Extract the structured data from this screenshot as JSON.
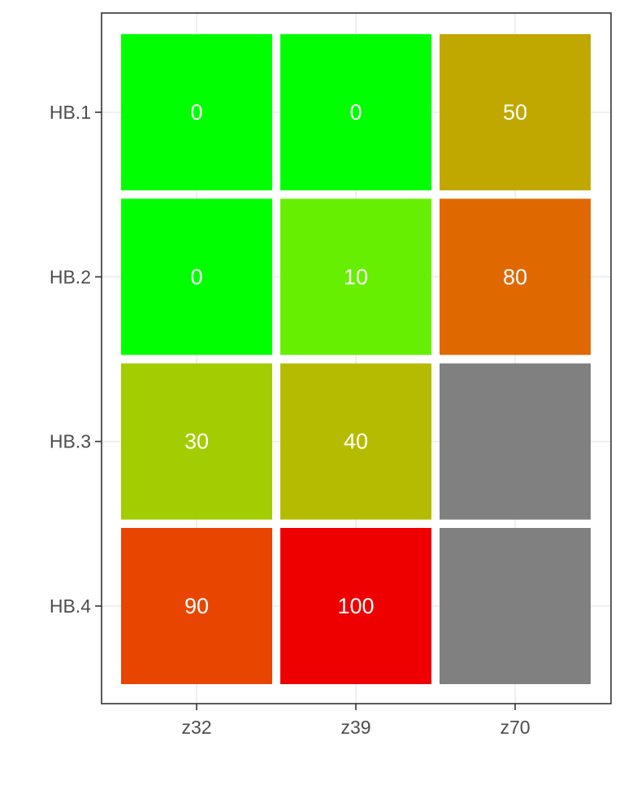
{
  "chart_data": {
    "type": "heatmap",
    "title": "",
    "xlabel": "",
    "ylabel": "",
    "x_categories": [
      "z32",
      "z39",
      "z70"
    ],
    "y_categories": [
      "HB.1",
      "HB.2",
      "HB.3",
      "HB.4"
    ],
    "cells": [
      {
        "x": "z32",
        "y": "HB.1",
        "value": 0,
        "label": "0",
        "color": "#00ff00"
      },
      {
        "x": "z39",
        "y": "HB.1",
        "value": 0,
        "label": "0",
        "color": "#00ff00"
      },
      {
        "x": "z70",
        "y": "HB.1",
        "value": 50,
        "label": "50",
        "color": "#c0a800"
      },
      {
        "x": "z32",
        "y": "HB.2",
        "value": 0,
        "label": "0",
        "color": "#00ff00"
      },
      {
        "x": "z39",
        "y": "HB.2",
        "value": 10,
        "label": "10",
        "color": "#66ef00"
      },
      {
        "x": "z70",
        "y": "HB.2",
        "value": 80,
        "label": "80",
        "color": "#e06800"
      },
      {
        "x": "z32",
        "y": "HB.3",
        "value": 30,
        "label": "30",
        "color": "#a2cd00"
      },
      {
        "x": "z39",
        "y": "HB.3",
        "value": 40,
        "label": "40",
        "color": "#b5bc00"
      },
      {
        "x": "z70",
        "y": "HB.3",
        "value": null,
        "label": "",
        "color": "#808080"
      },
      {
        "x": "z32",
        "y": "HB.4",
        "value": 90,
        "label": "90",
        "color": "#e84600"
      },
      {
        "x": "z39",
        "y": "HB.4",
        "value": 100,
        "label": "100",
        "color": "#ee0000"
      },
      {
        "x": "z70",
        "y": "HB.4",
        "value": null,
        "label": "",
        "color": "#808080"
      }
    ],
    "na_color": "#808080",
    "label_color": "#ffffff",
    "legend": "none",
    "grid": true,
    "panel_border": true
  }
}
